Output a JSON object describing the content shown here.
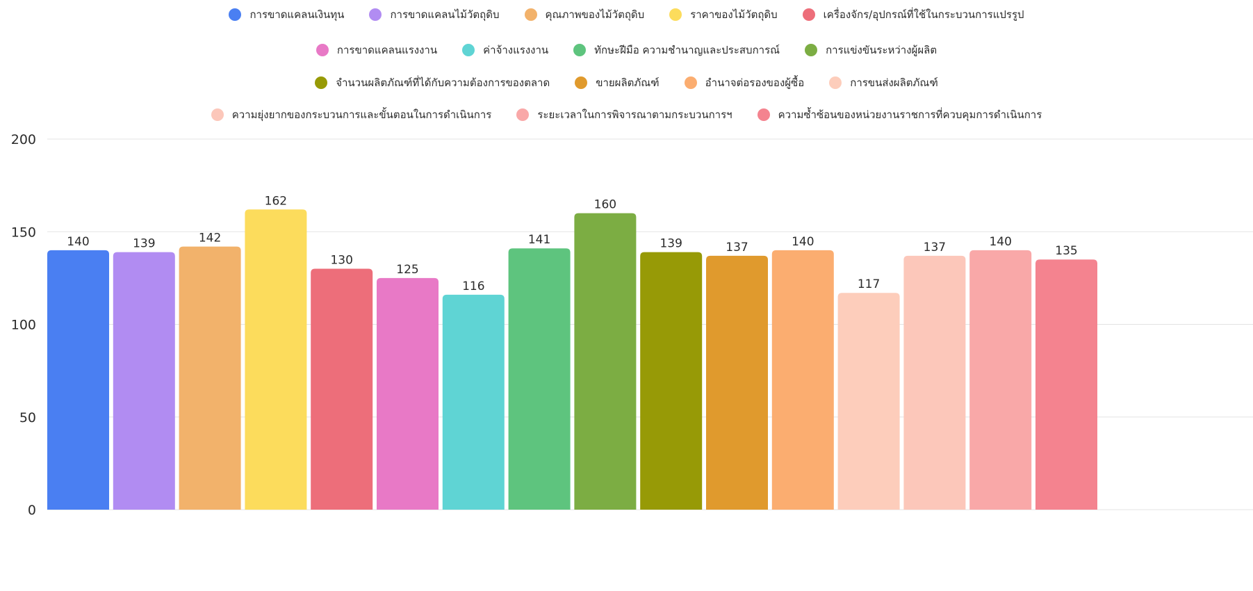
{
  "chart_data": {
    "type": "bar",
    "categories": [
      "การขาดแคลนเงินทุน",
      "การขาดแคลนไม้วัตถุดิบ",
      "คุณภาพของไม้วัตถุดิบ",
      "ราคาของไม้วัตถุดิบ",
      "เครื่องจักร/อุปกรณ์ที่ใช้ในกระบวนการแปรรูป",
      "การขาดแคลนแรงงาน",
      "ค่าจ้างแรงงาน",
      "ทักษะฝีมือ ความชำนาญและประสบการณ์",
      "การแข่งขันระหว่างผู้ผลิต",
      "จำนวนผลิตภัณฑ์ที่ได้กับความต้องการของตลาด",
      "ขายผลิตภัณฑ์",
      "อำนาจต่อรองของผู้ซื้อ",
      "การขนส่งผลิตภัณฑ์",
      "ความยุ่งยากของกระบวนการและขั้นตอนในการดำเนินการ",
      "ระยะเวลาในการพิจารณาตามกระบวนการฯ",
      "ความซ้ำซ้อนของหน่วยงานราชการที่ควบคุมการดำเนินการ"
    ],
    "values": [
      140,
      139,
      142,
      162,
      130,
      125,
      116,
      141,
      160,
      139,
      137,
      140,
      117,
      137,
      140,
      135
    ],
    "colors": [
      "#4a7ff2",
      "#b18cf2",
      "#f2b26b",
      "#fcdc5c",
      "#ed6e7a",
      "#e879c6",
      "#5fd4d4",
      "#5ec47e",
      "#7cad43",
      "#979a06",
      "#e09a2d",
      "#fbad70",
      "#fdcdbb",
      "#fcc7ba",
      "#f9a8a8",
      "#f4838f"
    ],
    "yticks": [
      0,
      50,
      100,
      150,
      200
    ],
    "ylim": [
      0,
      200
    ],
    "grid": true,
    "legend": "top"
  }
}
